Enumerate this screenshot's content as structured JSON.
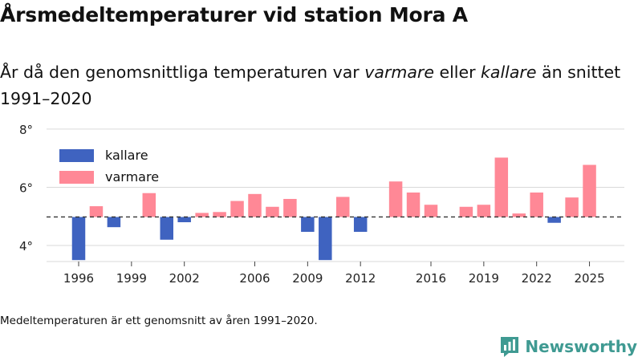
{
  "title": "Årsmedeltemperaturer vid station Mora A",
  "subtitle": {
    "prefix": "År då den genomsnittliga temperaturen var ",
    "warm_word": "varmare",
    "middle": " eller ",
    "cold_word": "kallare",
    "suffix": " än snittet 1991–2020"
  },
  "footnote": "Medeltemperaturen är ett genomsnitt av åren 1991–2020.",
  "brand": "Newsworthy",
  "colors": {
    "kallare": "#3f63c0",
    "varmare": "#ff8896",
    "grid": "#d9d9d9",
    "baseline": "#333333",
    "brand": "#3f9a92"
  },
  "chart_data": {
    "type": "bar",
    "title": "Årsmedeltemperaturer vid station Mora A",
    "xlabel": "",
    "ylabel": "",
    "baseline": 4.98,
    "ylim": [
      3.45,
      8.3
    ],
    "y_ticks": [
      4,
      6,
      8
    ],
    "y_tick_labels": [
      "4°",
      "6°",
      "8°"
    ],
    "x_ticks": [
      1996,
      1999,
      2002,
      2006,
      2009,
      2012,
      2016,
      2019,
      2022,
      2025
    ],
    "legend": [
      {
        "key": "kallare",
        "label": "kallare"
      },
      {
        "key": "varmare",
        "label": "varmare"
      }
    ],
    "legend_position": "top-left",
    "x": [
      1996,
      1997,
      1998,
      1999,
      2000,
      2001,
      2002,
      2003,
      2004,
      2005,
      2006,
      2007,
      2008,
      2009,
      2010,
      2011,
      2012,
      2013,
      2014,
      2015,
      2016,
      2017,
      2018,
      2019,
      2020,
      2021,
      2022,
      2023,
      2024,
      2025
    ],
    "values": [
      3.5,
      5.35,
      4.63,
      null,
      5.8,
      4.2,
      4.8,
      5.12,
      5.15,
      5.53,
      5.77,
      5.33,
      5.6,
      4.47,
      3.5,
      5.67,
      4.47,
      null,
      6.2,
      5.82,
      5.4,
      null,
      5.33,
      5.4,
      7.02,
      5.1,
      5.82,
      4.78,
      5.65,
      6.77
    ]
  }
}
